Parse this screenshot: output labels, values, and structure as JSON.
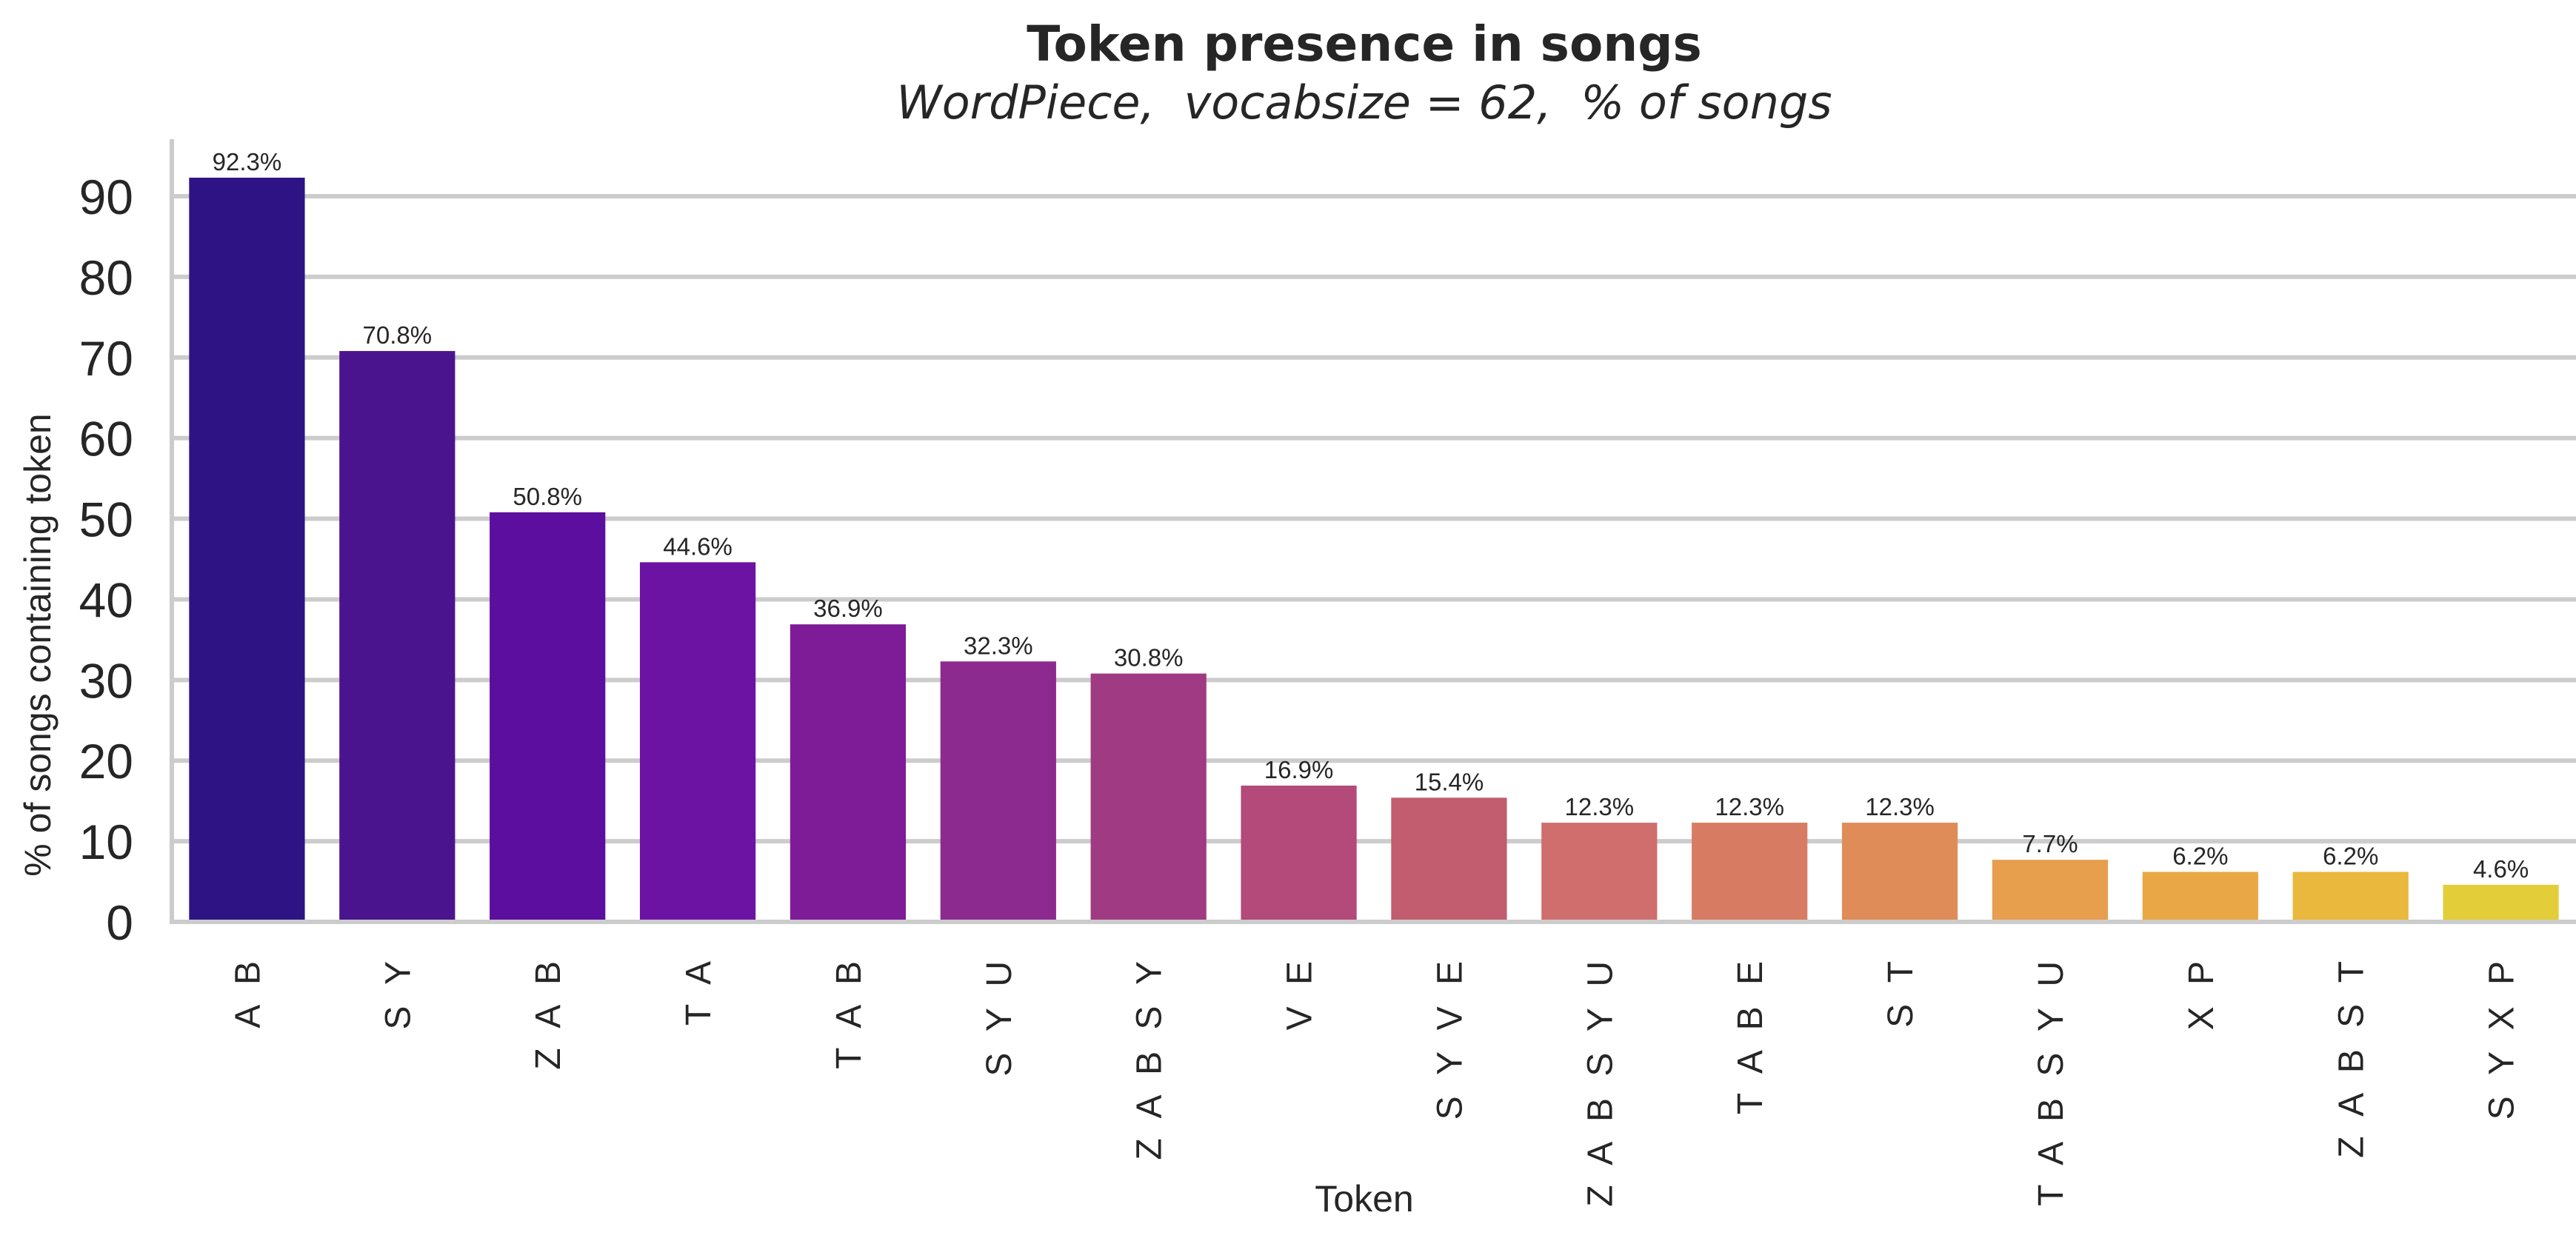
{
  "chart_data": {
    "type": "bar",
    "title": "Token presence in songs",
    "subtitle": "WordPiece,  vocabsize = 62,  % of songs",
    "xlabel": "Token",
    "ylabel": "% of songs containing token",
    "categories": [
      "A B",
      "S Y",
      "Z A B",
      "T A",
      "T A B",
      "S Y U",
      "Z A B S Y",
      "V E",
      "S Y V E",
      "Z A B S Y U",
      "T A B E",
      "S T",
      "T A B S Y U",
      "X P",
      "Z A B S T",
      "S Y X P"
    ],
    "values": [
      92.3,
      70.8,
      50.8,
      44.6,
      36.9,
      32.3,
      30.8,
      16.9,
      15.4,
      12.3,
      12.3,
      12.3,
      7.7,
      6.2,
      6.2,
      4.6
    ],
    "value_labels": [
      "92.3%",
      "70.8%",
      "50.8%",
      "44.6%",
      "36.9%",
      "32.3%",
      "30.8%",
      "16.9%",
      "15.4%",
      "12.3%",
      "12.3%",
      "12.3%",
      "7.7%",
      "6.2%",
      "6.2%",
      "4.6%"
    ],
    "colors": [
      "#2d1384",
      "#4a148f",
      "#5c0f9e",
      "#6c13a3",
      "#7e1b97",
      "#8c2a8f",
      "#a03a83",
      "#b34a79",
      "#c25c6f",
      "#cf6e6c",
      "#d77c63",
      "#e08c59",
      "#e79e4d",
      "#e9a845",
      "#e9b83c",
      "#e3ce3a"
    ],
    "yticks": [
      0,
      10,
      20,
      30,
      40,
      50,
      60,
      70,
      80,
      90
    ],
    "ylim": [
      0,
      97
    ],
    "grid": true,
    "legend": "none"
  }
}
